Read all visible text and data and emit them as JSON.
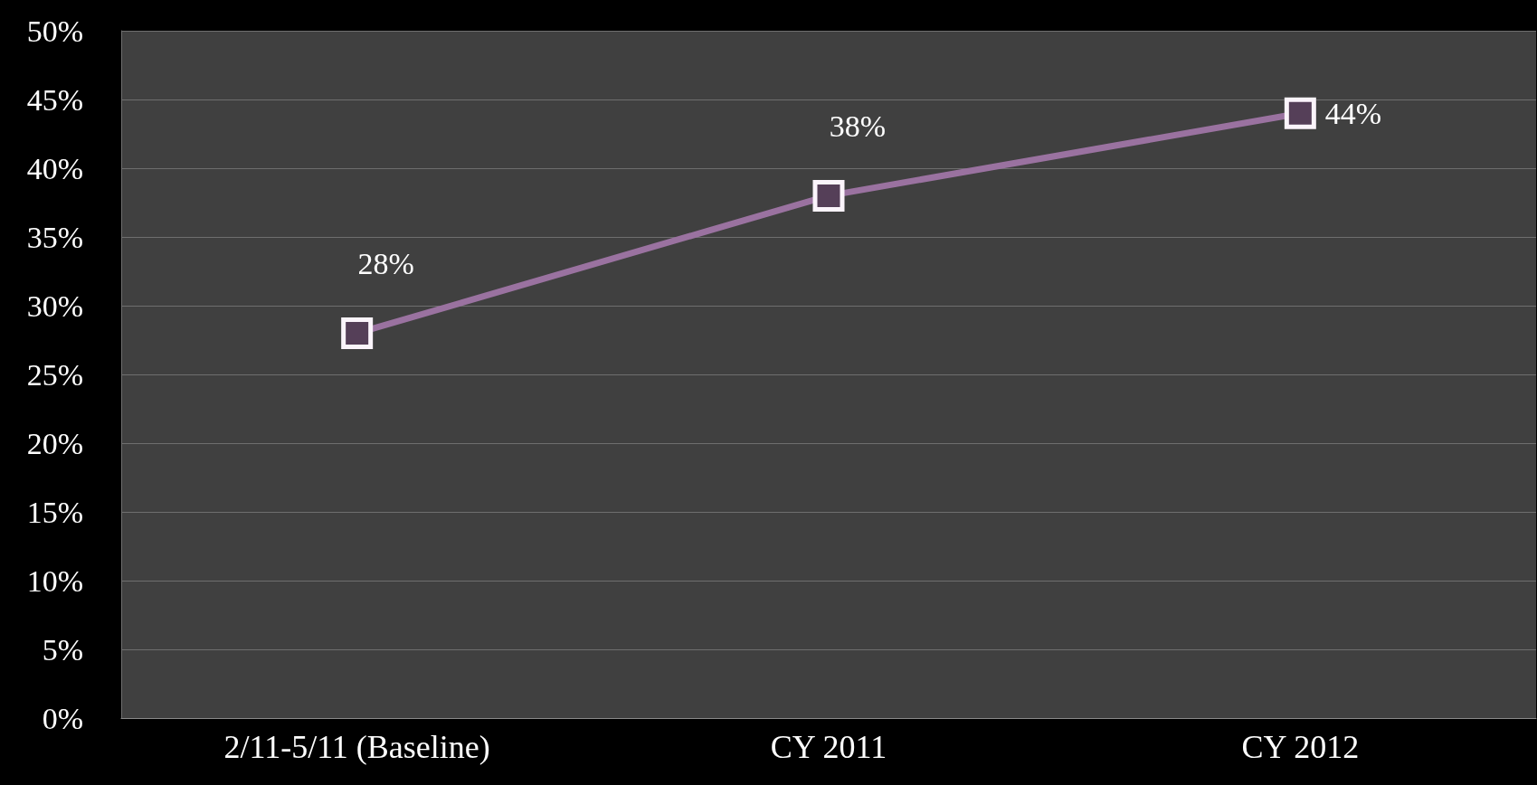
{
  "chart_data": {
    "type": "line",
    "categories": [
      "2/11-5/11 (Baseline)",
      "CY 2011",
      "CY 2012"
    ],
    "series": [
      {
        "color": "#9a72a0",
        "values": [
          28,
          38,
          44
        ],
        "value_labels": [
          "28%",
          "38%",
          "44%"
        ]
      }
    ],
    "ylim": [
      0,
      50
    ],
    "yticks": [
      {
        "value": 0,
        "label": "0%"
      },
      {
        "value": 5,
        "label": "5%"
      },
      {
        "value": 10,
        "label": "10%"
      },
      {
        "value": 15,
        "label": "15%"
      },
      {
        "value": 20,
        "label": "20%"
      },
      {
        "value": 25,
        "label": "25%"
      },
      {
        "value": 30,
        "label": "30%"
      },
      {
        "value": 35,
        "label": "35%"
      },
      {
        "value": 40,
        "label": "40%"
      },
      {
        "value": 45,
        "label": "45%"
      },
      {
        "value": 50,
        "label": "50%"
      }
    ],
    "grid": "y",
    "marker": "square",
    "line_style": "solid"
  }
}
